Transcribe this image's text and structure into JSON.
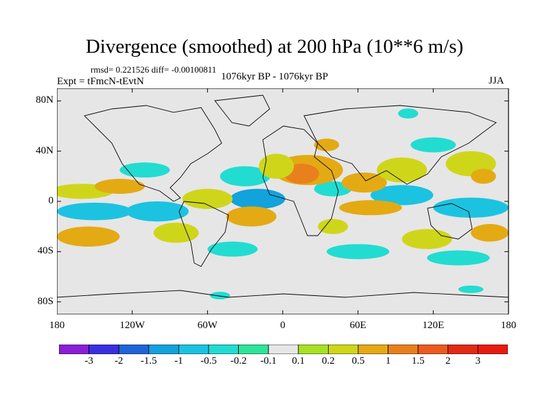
{
  "title": "Divergence (smoothed) at 200 hPa (10**6 m/s)",
  "stats": "rmsd= 0.221526 diff= -0.00100811",
  "experiment": "Expt = tFmcN-tEvtN",
  "period": "1076kyr BP - 1076kyr BP",
  "season": "JJA",
  "map": {
    "projection": "cylindrical-equidistant",
    "lat_labels": [
      "80N",
      "40N",
      "0",
      "40S",
      "80S"
    ],
    "lat_values": [
      80,
      40,
      0,
      -40,
      -80
    ],
    "lon_labels": [
      "180",
      "120W",
      "60W",
      "0",
      "60E",
      "120E",
      "180"
    ],
    "lon_values": [
      -180,
      -120,
      -60,
      0,
      60,
      120,
      180
    ],
    "background_color": "#e6e6e6"
  },
  "colorbar": {
    "labels": [
      "-3",
      "-2",
      "-1.5",
      "-1",
      "-0.5",
      "-0.2",
      "-0.1",
      "0.1",
      "0.2",
      "0.5",
      "1",
      "1.5",
      "2",
      "3"
    ],
    "colors": [
      "#8a1fd6",
      "#3a2ee0",
      "#1f64d8",
      "#12a2dc",
      "#1bc3e0",
      "#22dcd2",
      "#2ee39a",
      "#e6e6e6",
      "#a8e024",
      "#cfd61a",
      "#e3aa14",
      "#e8801e",
      "#ec5a1e",
      "#e02b16",
      "#e81b10"
    ]
  },
  "fields": {
    "positive": [
      {
        "lon": 20,
        "lat": 25,
        "rx": 28,
        "ry": 12,
        "level": "0.5"
      },
      {
        "lon": 15,
        "lat": 22,
        "rx": 14,
        "ry": 8,
        "level": "1"
      },
      {
        "lon": -5,
        "lat": 28,
        "rx": 14,
        "ry": 10,
        "level": "0.2"
      },
      {
        "lon": 35,
        "lat": 45,
        "rx": 10,
        "ry": 5,
        "level": "0.5"
      },
      {
        "lon": 65,
        "lat": 15,
        "rx": 18,
        "ry": 8,
        "level": "0.5"
      },
      {
        "lon": 95,
        "lat": 25,
        "rx": 20,
        "ry": 10,
        "level": "0.2"
      },
      {
        "lon": 150,
        "lat": 30,
        "rx": 20,
        "ry": 10,
        "level": "0.2"
      },
      {
        "lon": 160,
        "lat": 20,
        "rx": 10,
        "ry": 6,
        "level": "0.5"
      },
      {
        "lon": -160,
        "lat": 8,
        "rx": 25,
        "ry": 6,
        "level": "0.2"
      },
      {
        "lon": -130,
        "lat": 12,
        "rx": 20,
        "ry": 6,
        "level": "0.5"
      },
      {
        "lon": -60,
        "lat": 2,
        "rx": 20,
        "ry": 8,
        "level": "0.2"
      },
      {
        "lon": -25,
        "lat": -12,
        "rx": 20,
        "ry": 8,
        "level": "0.5"
      },
      {
        "lon": -155,
        "lat": -28,
        "rx": 25,
        "ry": 8,
        "level": "0.5"
      },
      {
        "lon": -85,
        "lat": -25,
        "rx": 18,
        "ry": 8,
        "level": "0.2"
      },
      {
        "lon": 70,
        "lat": -5,
        "rx": 25,
        "ry": 6,
        "level": "0.5"
      },
      {
        "lon": 115,
        "lat": -30,
        "rx": 20,
        "ry": 8,
        "level": "0.2"
      },
      {
        "lon": 165,
        "lat": -25,
        "rx": 15,
        "ry": 7,
        "level": "0.5"
      },
      {
        "lon": 40,
        "lat": -20,
        "rx": 12,
        "ry": 6,
        "level": "0.2"
      }
    ],
    "negative": [
      {
        "lon": -150,
        "lat": -8,
        "rx": 30,
        "ry": 7,
        "level": "-0.5"
      },
      {
        "lon": -100,
        "lat": -8,
        "rx": 25,
        "ry": 8,
        "level": "-0.5"
      },
      {
        "lon": -20,
        "lat": 2,
        "rx": 22,
        "ry": 8,
        "level": "-1"
      },
      {
        "lon": -30,
        "lat": 20,
        "rx": 20,
        "ry": 8,
        "level": "-0.2"
      },
      {
        "lon": 95,
        "lat": 5,
        "rx": 25,
        "ry": 8,
        "level": "-0.5"
      },
      {
        "lon": 150,
        "lat": -5,
        "rx": 30,
        "ry": 8,
        "level": "-0.5"
      },
      {
        "lon": 40,
        "lat": 10,
        "rx": 15,
        "ry": 6,
        "level": "-0.2"
      },
      {
        "lon": -110,
        "lat": 25,
        "rx": 20,
        "ry": 6,
        "level": "-0.2"
      },
      {
        "lon": 120,
        "lat": 45,
        "rx": 18,
        "ry": 6,
        "level": "-0.2"
      },
      {
        "lon": 60,
        "lat": -40,
        "rx": 25,
        "ry": 6,
        "level": "-0.2"
      },
      {
        "lon": -40,
        "lat": -38,
        "rx": 20,
        "ry": 6,
        "level": "-0.2"
      },
      {
        "lon": 140,
        "lat": -45,
        "rx": 25,
        "ry": 6,
        "level": "-0.2"
      },
      {
        "lon": 100,
        "lat": 70,
        "rx": 8,
        "ry": 4,
        "level": "-0.2"
      },
      {
        "lon": -50,
        "lat": -75,
        "rx": 8,
        "ry": 3,
        "level": "-0.2"
      },
      {
        "lon": 150,
        "lat": -70,
        "rx": 10,
        "ry": 3,
        "level": "-0.2"
      }
    ]
  }
}
